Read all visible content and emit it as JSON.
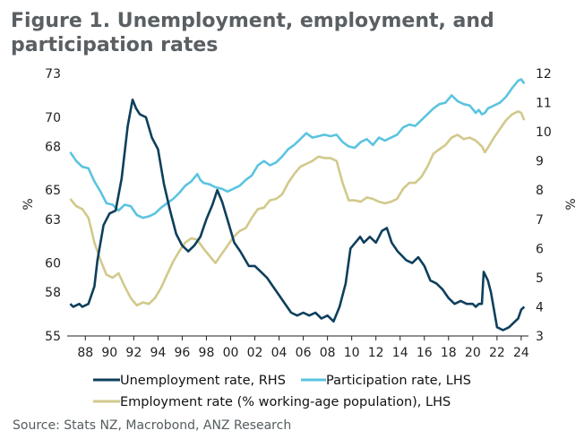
{
  "title_line1": "Figure 1. Unemployment, employment, and",
  "title_line2": "participation rates",
  "source": "Source: Stats NZ, Macrobond, ANZ Research",
  "chart_data": {
    "type": "line",
    "title": "Figure 1. Unemployment, employment, and participation rates",
    "ylabel_left": "%",
    "ylabel_right": "%",
    "x_tick_labels": [
      "88",
      "90",
      "92",
      "94",
      "96",
      "98",
      "00",
      "02",
      "04",
      "06",
      "08",
      "10",
      "12",
      "14",
      "16",
      "18",
      "20",
      "22",
      "24"
    ],
    "x_tick_years": [
      1988,
      1990,
      1992,
      1994,
      1996,
      1998,
      2000,
      2002,
      2004,
      2006,
      2008,
      2010,
      2012,
      2014,
      2016,
      2018,
      2020,
      2022,
      2024
    ],
    "xlim": [
      1986.5,
      2024.6
    ],
    "ylim_left": [
      55,
      73
    ],
    "ylim_right": [
      3,
      12
    ],
    "y_ticks_left": [
      55,
      58,
      60,
      63,
      65,
      68,
      70,
      73
    ],
    "y_ticks_right": [
      3,
      4,
      5,
      6,
      7,
      8,
      9,
      10,
      11,
      12
    ],
    "grid": false,
    "legend_position": "bottom",
    "series": [
      {
        "name": "Unemployment rate, RHS",
        "axis": "right",
        "color": "#0e3f5c",
        "points": [
          [
            1986.75,
            4.1
          ],
          [
            1987.0,
            4.0
          ],
          [
            1987.5,
            4.1
          ],
          [
            1987.75,
            4.0
          ],
          [
            1988.25,
            4.1
          ],
          [
            1988.75,
            4.7
          ],
          [
            1989.0,
            5.6
          ],
          [
            1989.5,
            6.8
          ],
          [
            1990.0,
            7.2
          ],
          [
            1990.5,
            7.3
          ],
          [
            1991.0,
            8.4
          ],
          [
            1991.5,
            10.2
          ],
          [
            1991.9,
            11.1
          ],
          [
            1992.2,
            10.8
          ],
          [
            1992.5,
            10.6
          ],
          [
            1993.0,
            10.5
          ],
          [
            1993.5,
            9.8
          ],
          [
            1994.0,
            9.4
          ],
          [
            1994.5,
            8.2
          ],
          [
            1995.0,
            7.3
          ],
          [
            1995.5,
            6.5
          ],
          [
            1996.0,
            6.1
          ],
          [
            1996.5,
            5.9
          ],
          [
            1997.0,
            6.1
          ],
          [
            1997.5,
            6.4
          ],
          [
            1998.0,
            7.0
          ],
          [
            1998.5,
            7.5
          ],
          [
            1998.9,
            8.0
          ],
          [
            1999.3,
            7.6
          ],
          [
            1999.8,
            6.9
          ],
          [
            2000.3,
            6.2
          ],
          [
            2000.8,
            5.9
          ],
          [
            2001.5,
            5.4
          ],
          [
            2002.0,
            5.4
          ],
          [
            2002.5,
            5.2
          ],
          [
            2003.0,
            5.0
          ],
          [
            2003.5,
            4.7
          ],
          [
            2004.0,
            4.4
          ],
          [
            2004.5,
            4.1
          ],
          [
            2005.0,
            3.8
          ],
          [
            2005.5,
            3.7
          ],
          [
            2006.0,
            3.8
          ],
          [
            2006.5,
            3.7
          ],
          [
            2007.0,
            3.8
          ],
          [
            2007.5,
            3.6
          ],
          [
            2008.0,
            3.7
          ],
          [
            2008.5,
            3.5
          ],
          [
            2009.0,
            4.0
          ],
          [
            2009.5,
            4.8
          ],
          [
            2009.9,
            6.0
          ],
          [
            2010.3,
            6.2
          ],
          [
            2010.7,
            6.4
          ],
          [
            2011.0,
            6.2
          ],
          [
            2011.5,
            6.4
          ],
          [
            2012.0,
            6.2
          ],
          [
            2012.5,
            6.6
          ],
          [
            2012.9,
            6.7
          ],
          [
            2013.3,
            6.2
          ],
          [
            2013.8,
            5.9
          ],
          [
            2014.5,
            5.6
          ],
          [
            2015.0,
            5.5
          ],
          [
            2015.5,
            5.7
          ],
          [
            2016.0,
            5.4
          ],
          [
            2016.5,
            4.9
          ],
          [
            2017.0,
            4.8
          ],
          [
            2017.5,
            4.6
          ],
          [
            2018.0,
            4.3
          ],
          [
            2018.5,
            4.1
          ],
          [
            2019.0,
            4.2
          ],
          [
            2019.5,
            4.1
          ],
          [
            2020.0,
            4.1
          ],
          [
            2020.25,
            4.0
          ],
          [
            2020.5,
            4.1
          ],
          [
            2020.75,
            4.1
          ],
          [
            2020.9,
            5.2
          ],
          [
            2021.25,
            4.9
          ],
          [
            2021.5,
            4.5
          ],
          [
            2021.75,
            3.9
          ],
          [
            2022.0,
            3.3
          ],
          [
            2022.5,
            3.2
          ],
          [
            2023.0,
            3.3
          ],
          [
            2023.5,
            3.5
          ],
          [
            2023.75,
            3.6
          ],
          [
            2024.0,
            3.9
          ],
          [
            2024.25,
            4.0
          ]
        ]
      },
      {
        "name": "Participation rate, LHS",
        "axis": "left",
        "color": "#5bc4df",
        "points": [
          [
            1986.75,
            67.6
          ],
          [
            1987.25,
            67.0
          ],
          [
            1987.75,
            66.6
          ],
          [
            1988.25,
            66.5
          ],
          [
            1988.75,
            65.6
          ],
          [
            1989.25,
            64.9
          ],
          [
            1989.75,
            64.1
          ],
          [
            1990.25,
            64.0
          ],
          [
            1990.75,
            63.6
          ],
          [
            1991.25,
            64.0
          ],
          [
            1991.75,
            63.9
          ],
          [
            1992.25,
            63.3
          ],
          [
            1992.75,
            63.1
          ],
          [
            1993.25,
            63.2
          ],
          [
            1993.75,
            63.4
          ],
          [
            1994.25,
            63.8
          ],
          [
            1994.75,
            64.1
          ],
          [
            1995.25,
            64.4
          ],
          [
            1995.75,
            64.8
          ],
          [
            1996.25,
            65.3
          ],
          [
            1996.75,
            65.6
          ],
          [
            1997.25,
            66.1
          ],
          [
            1997.5,
            65.7
          ],
          [
            1997.75,
            65.5
          ],
          [
            1998.25,
            65.4
          ],
          [
            1998.75,
            65.2
          ],
          [
            1999.25,
            65.1
          ],
          [
            1999.75,
            64.9
          ],
          [
            2000.25,
            65.1
          ],
          [
            2000.75,
            65.3
          ],
          [
            2001.25,
            65.7
          ],
          [
            2001.75,
            66.0
          ],
          [
            2002.25,
            66.7
          ],
          [
            2002.75,
            67.0
          ],
          [
            2003.25,
            66.7
          ],
          [
            2003.75,
            66.9
          ],
          [
            2004.25,
            67.3
          ],
          [
            2004.75,
            67.8
          ],
          [
            2005.25,
            68.1
          ],
          [
            2005.75,
            68.5
          ],
          [
            2006.25,
            68.9
          ],
          [
            2006.75,
            68.6
          ],
          [
            2007.25,
            68.7
          ],
          [
            2007.75,
            68.8
          ],
          [
            2008.25,
            68.7
          ],
          [
            2008.75,
            68.8
          ],
          [
            2009.25,
            68.3
          ],
          [
            2009.75,
            68.0
          ],
          [
            2010.25,
            67.9
          ],
          [
            2010.75,
            68.3
          ],
          [
            2011.25,
            68.5
          ],
          [
            2011.75,
            68.1
          ],
          [
            2012.25,
            68.6
          ],
          [
            2012.75,
            68.4
          ],
          [
            2013.25,
            68.6
          ],
          [
            2013.75,
            68.8
          ],
          [
            2014.25,
            69.3
          ],
          [
            2014.75,
            69.5
          ],
          [
            2015.25,
            69.4
          ],
          [
            2015.75,
            69.8
          ],
          [
            2016.25,
            70.2
          ],
          [
            2016.75,
            70.6
          ],
          [
            2017.25,
            70.9
          ],
          [
            2017.75,
            71.0
          ],
          [
            2018.25,
            71.5
          ],
          [
            2018.75,
            71.1
          ],
          [
            2019.25,
            70.9
          ],
          [
            2019.75,
            70.8
          ],
          [
            2020.25,
            70.3
          ],
          [
            2020.5,
            70.5
          ],
          [
            2020.75,
            70.2
          ],
          [
            2021.0,
            70.3
          ],
          [
            2021.25,
            70.6
          ],
          [
            2021.75,
            70.8
          ],
          [
            2022.25,
            71.0
          ],
          [
            2022.75,
            71.4
          ],
          [
            2023.25,
            72.0
          ],
          [
            2023.75,
            72.5
          ],
          [
            2024.0,
            72.6
          ],
          [
            2024.25,
            72.3
          ]
        ]
      },
      {
        "name": "Employment rate (% working-age population), LHS",
        "axis": "left",
        "color": "#d2c98b",
        "points": [
          [
            1986.75,
            64.4
          ],
          [
            1987.25,
            63.9
          ],
          [
            1987.75,
            63.7
          ],
          [
            1988.25,
            63.1
          ],
          [
            1988.5,
            62.3
          ],
          [
            1988.75,
            61.4
          ],
          [
            1989.25,
            60.2
          ],
          [
            1989.75,
            59.2
          ],
          [
            1990.25,
            59.0
          ],
          [
            1990.75,
            59.3
          ],
          [
            1991.25,
            58.4
          ],
          [
            1991.75,
            57.6
          ],
          [
            1992.25,
            57.1
          ],
          [
            1992.75,
            57.3
          ],
          [
            1993.25,
            57.2
          ],
          [
            1993.75,
            57.6
          ],
          [
            1994.25,
            58.3
          ],
          [
            1994.75,
            59.2
          ],
          [
            1995.25,
            60.1
          ],
          [
            1995.75,
            60.8
          ],
          [
            1996.25,
            61.4
          ],
          [
            1996.75,
            61.7
          ],
          [
            1997.25,
            61.6
          ],
          [
            1997.75,
            61.0
          ],
          [
            1998.25,
            60.5
          ],
          [
            1998.75,
            60.0
          ],
          [
            1999.25,
            60.6
          ],
          [
            1999.75,
            61.2
          ],
          [
            2000.25,
            61.8
          ],
          [
            2000.75,
            62.2
          ],
          [
            2001.25,
            62.4
          ],
          [
            2001.75,
            63.1
          ],
          [
            2002.25,
            63.7
          ],
          [
            2002.75,
            63.8
          ],
          [
            2003.25,
            64.3
          ],
          [
            2003.75,
            64.4
          ],
          [
            2004.25,
            64.7
          ],
          [
            2004.75,
            65.5
          ],
          [
            2005.25,
            66.1
          ],
          [
            2005.75,
            66.6
          ],
          [
            2006.25,
            66.8
          ],
          [
            2006.75,
            67.0
          ],
          [
            2007.25,
            67.3
          ],
          [
            2007.75,
            67.2
          ],
          [
            2008.25,
            67.2
          ],
          [
            2008.75,
            67.0
          ],
          [
            2009.25,
            65.5
          ],
          [
            2009.75,
            64.3
          ],
          [
            2010.25,
            64.3
          ],
          [
            2010.75,
            64.2
          ],
          [
            2011.25,
            64.5
          ],
          [
            2011.75,
            64.4
          ],
          [
            2012.25,
            64.2
          ],
          [
            2012.75,
            64.1
          ],
          [
            2013.25,
            64.2
          ],
          [
            2013.75,
            64.4
          ],
          [
            2014.25,
            65.1
          ],
          [
            2014.75,
            65.5
          ],
          [
            2015.25,
            65.5
          ],
          [
            2015.75,
            65.9
          ],
          [
            2016.25,
            66.6
          ],
          [
            2016.75,
            67.5
          ],
          [
            2017.25,
            67.8
          ],
          [
            2017.75,
            68.1
          ],
          [
            2018.25,
            68.6
          ],
          [
            2018.75,
            68.8
          ],
          [
            2019.25,
            68.5
          ],
          [
            2019.75,
            68.6
          ],
          [
            2020.25,
            68.4
          ],
          [
            2020.75,
            68.0
          ],
          [
            2021.0,
            67.6
          ],
          [
            2021.25,
            67.9
          ],
          [
            2021.75,
            68.6
          ],
          [
            2022.25,
            69.2
          ],
          [
            2022.75,
            69.8
          ],
          [
            2023.25,
            70.2
          ],
          [
            2023.75,
            70.4
          ],
          [
            2024.0,
            70.3
          ],
          [
            2024.25,
            69.8
          ]
        ]
      }
    ]
  }
}
